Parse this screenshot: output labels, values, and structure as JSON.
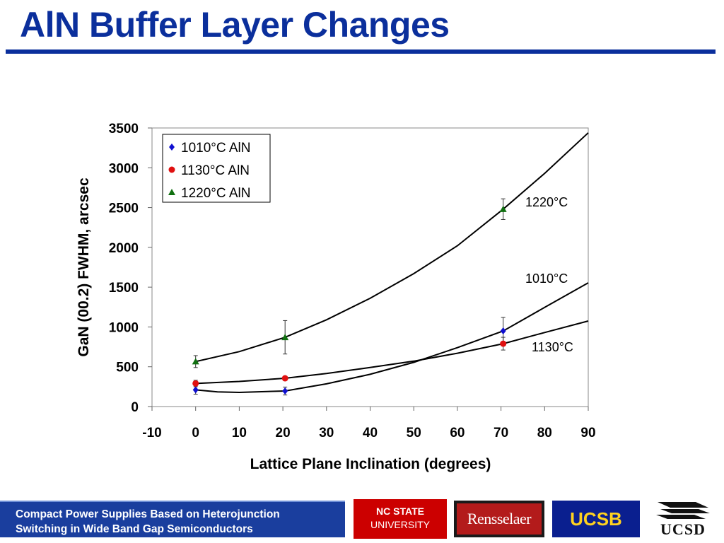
{
  "slide": {
    "title": "AlN Buffer Layer Changes"
  },
  "footer": {
    "line1": "Compact Power Supplies Based on Heterojunction",
    "line2": "Switching in Wide Band Gap Semiconductors",
    "logos": {
      "ncstate_line1": "NC STATE",
      "ncstate_line2": "UNIVERSITY",
      "rpi": "Rensselaer",
      "ucsb": "UCSB",
      "ucsd": "UCSD"
    }
  },
  "chart_data": {
    "type": "scatter",
    "xlabel": "Lattice Plane Inclination (degrees)",
    "ylabel": "GaN (00.2) FWHM, arcsec",
    "xlim": [
      -10,
      90
    ],
    "ylim": [
      0,
      3500
    ],
    "xticks": [
      -10,
      0,
      10,
      20,
      30,
      40,
      50,
      60,
      70,
      80,
      90
    ],
    "yticks": [
      0,
      500,
      1000,
      1500,
      2000,
      2500,
      3000,
      3500
    ],
    "grid": false,
    "legend_position": "top-left",
    "series": [
      {
        "name": "1010°C AlN",
        "marker": "diamond",
        "color": "#1010d0",
        "x": [
          0,
          20.5,
          70.5
        ],
        "y": [
          210,
          195,
          950
        ],
        "yerr": [
          55,
          50,
          170
        ],
        "fit_label": "1010°C",
        "fit": [
          [
            0,
            210
          ],
          [
            5,
            185
          ],
          [
            10,
            178
          ],
          [
            20.5,
            195
          ],
          [
            30,
            285
          ],
          [
            40,
            405
          ],
          [
            50,
            555
          ],
          [
            60,
            740
          ],
          [
            70.5,
            950
          ],
          [
            80,
            1245
          ],
          [
            90,
            1555
          ]
        ]
      },
      {
        "name": "1130°C AlN",
        "marker": "circle",
        "color": "#e01010",
        "x": [
          0,
          20.5,
          70.5
        ],
        "y": [
          290,
          355,
          790
        ],
        "yerr": [
          40,
          25,
          80
        ],
        "fit_label": "1130°C",
        "fit": [
          [
            0,
            290
          ],
          [
            10,
            315
          ],
          [
            20.5,
            355
          ],
          [
            30,
            415
          ],
          [
            40,
            490
          ],
          [
            50,
            570
          ],
          [
            60,
            670
          ],
          [
            70.5,
            790
          ],
          [
            80,
            930
          ],
          [
            90,
            1075
          ]
        ]
      },
      {
        "name": "1220°C AlN",
        "marker": "triangle",
        "color": "#107010",
        "x": [
          0,
          20.5,
          70.5
        ],
        "y": [
          565,
          870,
          2480
        ],
        "yerr": [
          75,
          210,
          130
        ],
        "fit_label": "1220°C",
        "fit": [
          [
            0,
            565
          ],
          [
            10,
            690
          ],
          [
            20.5,
            870
          ],
          [
            30,
            1090
          ],
          [
            40,
            1360
          ],
          [
            50,
            1670
          ],
          [
            60,
            2020
          ],
          [
            70.5,
            2480
          ],
          [
            80,
            2930
          ],
          [
            90,
            3440
          ]
        ]
      }
    ]
  }
}
